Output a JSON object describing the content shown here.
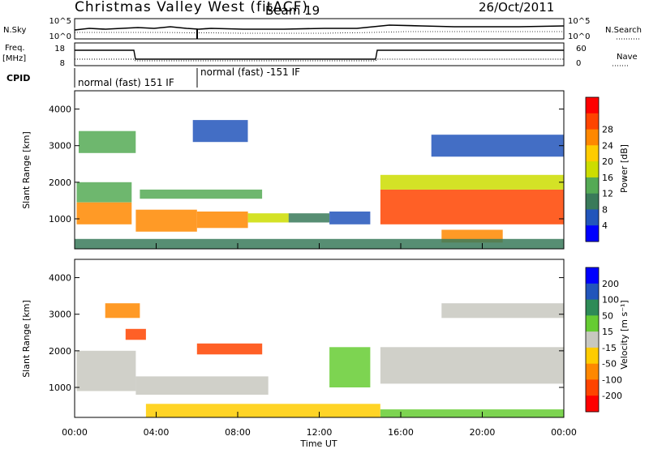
{
  "header": {
    "station": "Christmas Valley West (fitACF)",
    "beam": "Beam 19",
    "date": "26/Oct/2011"
  },
  "top_panels": {
    "nsky_label": "N.Sky",
    "nsearch_label": "N.Search",
    "nsky_ticks": [
      "10^5",
      "10^0"
    ],
    "nsearch_ticks": [
      "10^5",
      "10^0"
    ],
    "freq_label": "Freq.",
    "freq_unit": "[MHz]",
    "freq_ticks": [
      "18",
      "8"
    ],
    "nave_label": "Nave",
    "nave_ticks": [
      "60",
      "0"
    ],
    "cpid_label": "CPID",
    "cpid_segments": [
      "normal (fast) 151 IF",
      "normal (fast) -151 IF"
    ]
  },
  "chart_data": [
    {
      "type": "heatmap",
      "name": "power",
      "ylabel": "Slant Range [km]",
      "xlabel": "",
      "x_ticks": [
        "00:00",
        "04:00",
        "08:00",
        "12:00",
        "16:00",
        "20:00",
        "00:00"
      ],
      "xlim_hours": [
        0,
        24
      ],
      "y_ticks": [
        1000,
        2000,
        3000,
        4000
      ],
      "ylim": [
        180,
        4500
      ],
      "colorbar_label": "Power [dB]",
      "colorbar_ticks": [
        4,
        8,
        12,
        16,
        20,
        24,
        28
      ],
      "colorbar_colors": [
        "#0000ff",
        "#2255bb",
        "#3a7a5a",
        "#55aa55",
        "#ccdd00",
        "#ffcc00",
        "#ff8800",
        "#ff4400",
        "#ff0000"
      ],
      "bands": [
        {
          "t0": 0.1,
          "t1": 2.8,
          "r0": 850,
          "r1": 1450,
          "level": 27
        },
        {
          "t0": 0.1,
          "t1": 2.8,
          "r0": 1450,
          "r1": 2000,
          "level": 14
        },
        {
          "t0": 3.0,
          "t1": 6.0,
          "r0": 650,
          "r1": 1250,
          "level": 27
        },
        {
          "t0": 6.0,
          "t1": 8.5,
          "r0": 750,
          "r1": 1200,
          "level": 26
        },
        {
          "t0": 8.5,
          "t1": 10.5,
          "r0": 900,
          "r1": 1150,
          "level": 16
        },
        {
          "t0": 10.5,
          "t1": 12.5,
          "r0": 900,
          "r1": 1150,
          "level": 10
        },
        {
          "t0": 12.5,
          "t1": 14.5,
          "r0": 850,
          "r1": 1200,
          "level": 6
        },
        {
          "t0": 3.2,
          "t1": 9.2,
          "r0": 1550,
          "r1": 1800,
          "level": 12
        },
        {
          "t0": 0.2,
          "t1": 3.0,
          "r0": 2800,
          "r1": 3400,
          "level": 12
        },
        {
          "t0": 5.8,
          "t1": 8.5,
          "r0": 3100,
          "r1": 3700,
          "level": 5
        },
        {
          "t0": 15.0,
          "t1": 24.0,
          "r0": 850,
          "r1": 1800,
          "level": 28
        },
        {
          "t0": 15.0,
          "t1": 24.0,
          "r0": 1800,
          "r1": 2200,
          "level": 18
        },
        {
          "t0": 17.5,
          "t1": 24.0,
          "r0": 2700,
          "r1": 3300,
          "level": 6
        },
        {
          "t0": 18.0,
          "t1": 21.0,
          "r0": 350,
          "r1": 700,
          "level": 24
        },
        {
          "t0": 0.0,
          "t1": 24.0,
          "r0": 180,
          "r1": 450,
          "level": 8
        }
      ]
    },
    {
      "type": "heatmap",
      "name": "velocity",
      "ylabel": "Slant Range [km]",
      "xlabel": "Time UT",
      "x_ticks": [
        "00:00",
        "04:00",
        "08:00",
        "12:00",
        "16:00",
        "20:00",
        "00:00"
      ],
      "xlim_hours": [
        0,
        24
      ],
      "y_ticks": [
        1000,
        2000,
        3000,
        4000
      ],
      "ylim": [
        180,
        4500
      ],
      "colorbar_label": "Velocity [m s⁻¹]",
      "colorbar_ticks": [
        200,
        100,
        50,
        15,
        -15,
        -50,
        -100,
        -200
      ],
      "colorbar_colors": [
        "#0000ff",
        "#2255bb",
        "#2e8b57",
        "#66cc33",
        "#c8c8c0",
        "#ffcc00",
        "#ff8800",
        "#ff4400",
        "#ff0000"
      ],
      "bands": [
        {
          "t0": 0.1,
          "t1": 3.0,
          "r0": 900,
          "r1": 2000,
          "level": 0
        },
        {
          "t0": 3.0,
          "t1": 9.5,
          "r0": 800,
          "r1": 1300,
          "level": 0
        },
        {
          "t0": 6.0,
          "t1": 9.2,
          "r0": 1900,
          "r1": 2200,
          "level": -150
        },
        {
          "t0": 2.5,
          "t1": 3.5,
          "r0": 2300,
          "r1": 2600,
          "level": -150
        },
        {
          "t0": 1.5,
          "t1": 3.2,
          "r0": 2900,
          "r1": 3300,
          "level": -100
        },
        {
          "t0": 12.5,
          "t1": 14.5,
          "r0": 1000,
          "r1": 2100,
          "level": 30
        },
        {
          "t0": 15.0,
          "t1": 24.0,
          "r0": 1100,
          "r1": 2100,
          "level": 0
        },
        {
          "t0": 18.0,
          "t1": 24.0,
          "r0": 2900,
          "r1": 3300,
          "level": 0
        },
        {
          "t0": 3.5,
          "t1": 15.0,
          "r0": 180,
          "r1": 550,
          "level": -30
        },
        {
          "t0": 15.0,
          "t1": 24.0,
          "r0": 180,
          "r1": 400,
          "level": 30
        }
      ]
    }
  ]
}
